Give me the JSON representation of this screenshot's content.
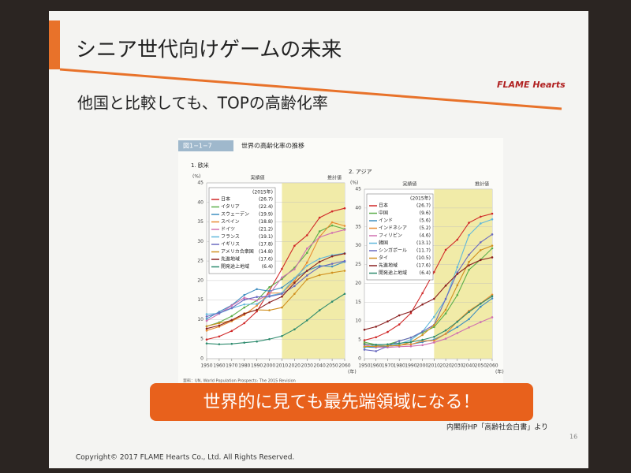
{
  "slide": {
    "title": "シニア世代向けゲームの未来",
    "subtitle": "他国と比較しても、TOPの高齢化率",
    "logo": "FLAME Hearts",
    "figure_label": "図1−1−7",
    "figure_title": "世界の高齢化率の推移",
    "source": "資料：UN, World Population Prospects: The 2015 Revision",
    "banner": "世界的に見ても最先端領域になる！",
    "credit": "内閣府HP「高齢社会白書」より",
    "page": "16",
    "copyright": "Copyright© 2017 FLAME Hearts Co., Ltd. All Rights Reserved."
  },
  "chart_data": [
    {
      "type": "line",
      "title": "1. 欧米",
      "y_unit": "(%)",
      "x_unit": "(年)",
      "legend_title": "(2015年)",
      "actual_label": "実績値",
      "forecast_label": "推計値",
      "forecast_from": 2010,
      "grid": true,
      "x": [
        1950,
        1960,
        1970,
        1980,
        1990,
        2000,
        2010,
        2020,
        2030,
        2040,
        2050,
        2060
      ],
      "xlim": [
        1950,
        2060
      ],
      "xticks": [
        1950,
        1960,
        1970,
        1980,
        1990,
        2000,
        2010,
        2020,
        2030,
        2040,
        2050,
        2060
      ],
      "ylim": [
        0,
        45
      ],
      "yticks": [
        0,
        5,
        10,
        15,
        20,
        25,
        30,
        35,
        40,
        45
      ],
      "series": [
        {
          "name": "日本",
          "label": "(26.7)",
          "color": "#d02828",
          "values": [
            4.9,
            5.7,
            7.1,
            9.1,
            12.1,
            17.4,
            23.0,
            28.9,
            31.6,
            36.1,
            37.7,
            38.5
          ]
        },
        {
          "name": "イタリア",
          "label": "(22.4)",
          "color": "#5cae4a",
          "values": [
            8.3,
            9.3,
            10.9,
            13.1,
            14.9,
            18.3,
            20.4,
            23.3,
            27.1,
            32.6,
            34.1,
            33.2
          ]
        },
        {
          "name": "スウェーデン",
          "label": "(19.9)",
          "color": "#3f8fc0",
          "values": [
            10.2,
            12.0,
            13.7,
            16.3,
            17.8,
            17.3,
            18.2,
            20.6,
            22.5,
            23.8,
            23.6,
            24.8
          ]
        },
        {
          "name": "スペイン",
          "label": "(18.8)",
          "color": "#e88a30",
          "values": [
            7.2,
            8.2,
            9.6,
            11.2,
            13.6,
            16.8,
            16.8,
            19.9,
            24.6,
            31.2,
            34.9,
            34.0
          ]
        },
        {
          "name": "ドイツ",
          "label": "(21.2)",
          "color": "#d070b0",
          "values": [
            9.7,
            11.5,
            13.6,
            15.6,
            14.9,
            16.5,
            20.8,
            22.9,
            28.2,
            31.1,
            32.2,
            33.0
          ]
        },
        {
          "name": "フランス",
          "label": "(19.1)",
          "color": "#60b8dc",
          "values": [
            11.4,
            11.6,
            12.9,
            13.9,
            14.0,
            16.1,
            16.8,
            20.6,
            23.8,
            25.6,
            26.5,
            27.0
          ]
        },
        {
          "name": "イギリス",
          "label": "(17.8)",
          "color": "#6a6ac0",
          "values": [
            10.8,
            11.7,
            13.0,
            15.1,
            15.8,
            15.9,
            16.6,
            18.6,
            21.3,
            23.5,
            24.3,
            25.0
          ]
        },
        {
          "name": "アメリカ合衆国",
          "label": "(14.8)",
          "color": "#d09020",
          "values": [
            8.3,
            9.1,
            9.8,
            11.6,
            12.5,
            12.4,
            13.1,
            16.6,
            20.3,
            21.4,
            22.0,
            22.5
          ]
        },
        {
          "name": "先進地域",
          "label": "(17.6)",
          "color": "#8b2020",
          "values": [
            7.7,
            8.5,
            9.9,
            11.5,
            12.5,
            14.4,
            15.9,
            19.4,
            22.5,
            24.8,
            26.2,
            26.9
          ]
        },
        {
          "name": "開発途上地域",
          "label": "(6.4)",
          "color": "#2e8b6e",
          "values": [
            3.9,
            3.7,
            3.8,
            4.1,
            4.4,
            5.0,
            5.8,
            7.5,
            9.8,
            12.4,
            14.6,
            16.6
          ]
        }
      ]
    },
    {
      "type": "line",
      "title": "2. アジア",
      "y_unit": "(%)",
      "x_unit": "(年)",
      "legend_title": "(2015年)",
      "actual_label": "実績値",
      "forecast_label": "推計値",
      "forecast_from": 2010,
      "grid": true,
      "x": [
        1950,
        1960,
        1970,
        1980,
        1990,
        2000,
        2010,
        2020,
        2030,
        2040,
        2050,
        2060
      ],
      "xlim": [
        1950,
        2060
      ],
      "xticks": [
        1950,
        1960,
        1970,
        1980,
        1990,
        2000,
        2010,
        2020,
        2030,
        2040,
        2050,
        2060
      ],
      "ylim": [
        0,
        45
      ],
      "yticks": [
        0,
        5,
        10,
        15,
        20,
        25,
        30,
        35,
        40,
        45
      ],
      "series": [
        {
          "name": "日本",
          "label": "(26.7)",
          "color": "#d02828",
          "values": [
            4.9,
            5.7,
            7.1,
            9.1,
            12.1,
            17.4,
            23.0,
            28.9,
            31.6,
            36.1,
            37.7,
            38.5
          ]
        },
        {
          "name": "中国",
          "label": "(9.6)",
          "color": "#5cae4a",
          "values": [
            4.4,
            3.7,
            3.8,
            4.7,
            5.6,
            6.9,
            8.4,
            12.0,
            16.9,
            23.6,
            26.3,
            29.3
          ]
        },
        {
          "name": "インド",
          "label": "(5.6)",
          "color": "#3f8fc0",
          "values": [
            3.1,
            3.0,
            3.3,
            3.6,
            3.8,
            4.4,
            5.1,
            6.6,
            8.4,
            10.5,
            13.8,
            16.0
          ]
        },
        {
          "name": "インドネシア",
          "label": "(5.2)",
          "color": "#e88a30",
          "values": [
            4.0,
            3.5,
            3.3,
            3.6,
            3.8,
            4.7,
            4.8,
            6.6,
            9.9,
            12.7,
            14.7,
            17.0
          ]
        },
        {
          "name": "フィリピン",
          "label": "(4.6)",
          "color": "#d070b0",
          "values": [
            3.6,
            3.1,
            3.0,
            3.2,
            3.3,
            3.6,
            4.3,
            5.3,
            6.8,
            8.3,
            9.7,
            11.0
          ]
        },
        {
          "name": "韓国",
          "label": "(13.1)",
          "color": "#60b8dc",
          "values": [
            2.9,
            3.7,
            3.3,
            3.9,
            5.0,
            7.2,
            11.1,
            15.8,
            24.3,
            32.8,
            35.9,
            37.0
          ]
        },
        {
          "name": "シンガポール",
          "label": "(11.7)",
          "color": "#6a6ac0",
          "values": [
            2.4,
            2.0,
            3.3,
            4.7,
            5.6,
            7.2,
            9.0,
            15.9,
            22.9,
            27.6,
            30.9,
            33.0
          ]
        },
        {
          "name": "タイ",
          "label": "(10.5)",
          "color": "#d09020",
          "values": [
            3.2,
            3.3,
            3.4,
            3.5,
            4.4,
            6.3,
            8.9,
            13.0,
            19.5,
            25.7,
            28.8,
            30.0
          ]
        },
        {
          "name": "先進地域",
          "label": "(17.6)",
          "color": "#8b2020",
          "values": [
            7.7,
            8.5,
            9.9,
            11.5,
            12.5,
            14.4,
            15.9,
            19.4,
            22.5,
            24.8,
            26.2,
            26.9
          ]
        },
        {
          "name": "開発途上地域",
          "label": "(6.4)",
          "color": "#2e8b6e",
          "values": [
            3.9,
            3.7,
            3.8,
            4.1,
            4.4,
            5.0,
            5.8,
            7.5,
            9.8,
            12.4,
            14.6,
            16.6
          ]
        }
      ]
    }
  ]
}
